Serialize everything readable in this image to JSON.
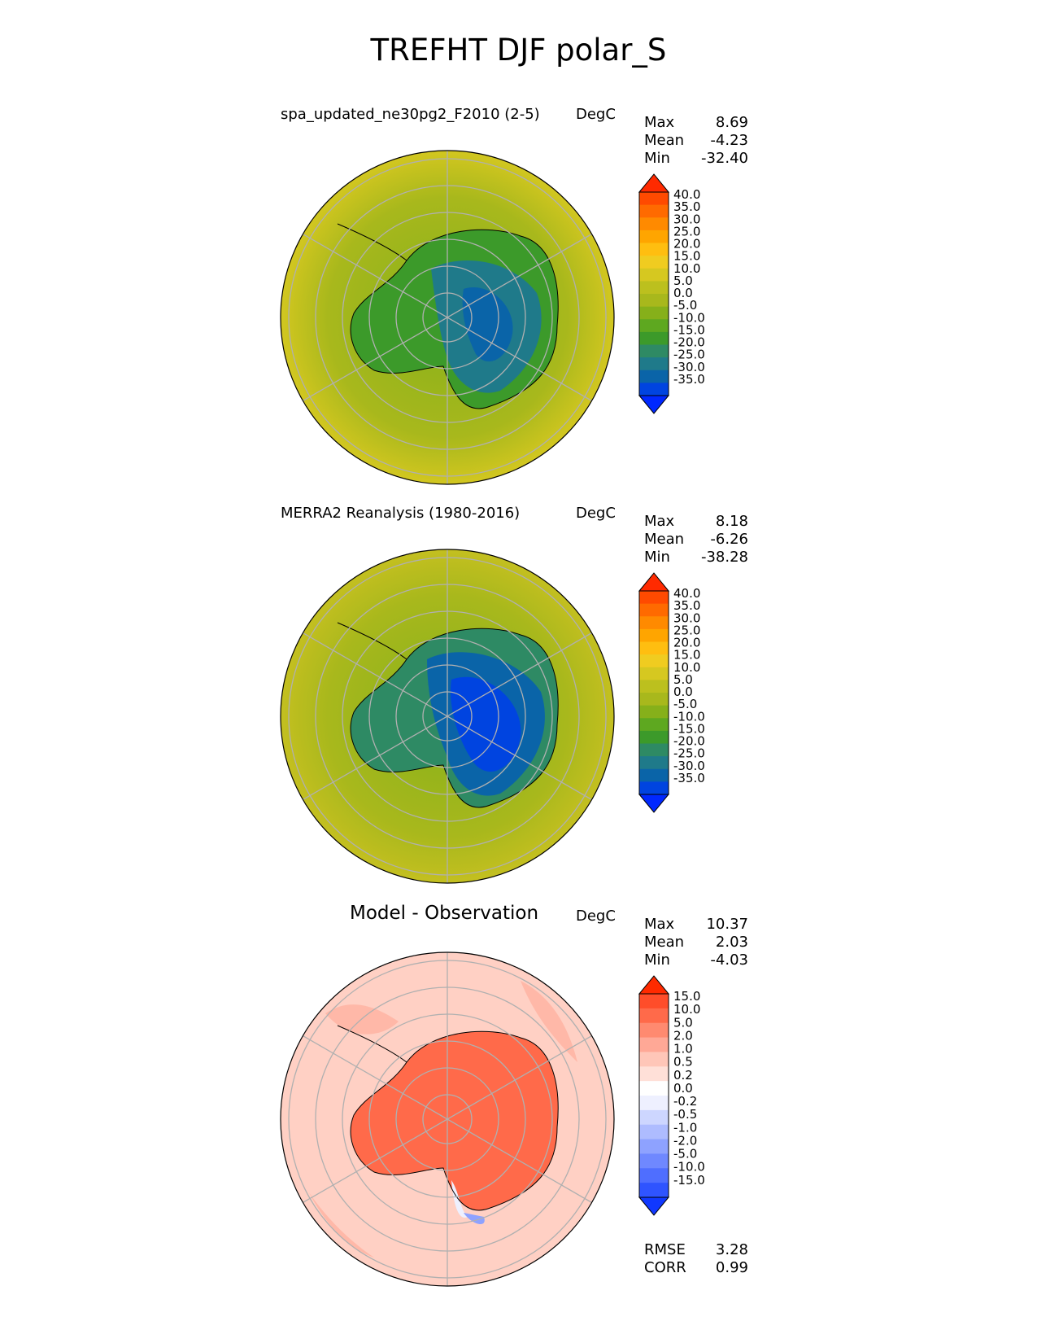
{
  "title": "TREFHT DJF polar_S",
  "panels": [
    {
      "title": "spa_updated_ne30pg2_F2010 (2-5)",
      "units": "DegC",
      "stats": [
        {
          "label": "Max",
          "value": "8.69"
        },
        {
          "label": "Mean",
          "value": "-4.23"
        },
        {
          "label": "Min",
          "value": "-32.40"
        }
      ],
      "colorbar_labels": [
        "40.0",
        "35.0",
        "30.0",
        "25.0",
        "20.0",
        "15.0",
        "10.0",
        "5.0",
        "0.0",
        "-5.0",
        "-10.0",
        "-15.0",
        "-20.0",
        "-25.0",
        "-30.0",
        "-35.0"
      ]
    },
    {
      "title": "MERRA2 Reanalysis (1980-2016)",
      "units": "DegC",
      "stats": [
        {
          "label": "Max",
          "value": "8.18"
        },
        {
          "label": "Mean",
          "value": "-6.26"
        },
        {
          "label": "Min",
          "value": "-38.28"
        }
      ],
      "colorbar_labels": [
        "40.0",
        "35.0",
        "30.0",
        "25.0",
        "20.0",
        "15.0",
        "10.0",
        "5.0",
        "0.0",
        "-5.0",
        "-10.0",
        "-15.0",
        "-20.0",
        "-25.0",
        "-30.0",
        "-35.0"
      ]
    },
    {
      "title": "Model - Observation",
      "units": "DegC",
      "stats": [
        {
          "label": "Max",
          "value": "10.37"
        },
        {
          "label": "Mean",
          "value": "2.03"
        },
        {
          "label": "Min",
          "value": "-4.03"
        }
      ],
      "colorbar_labels": [
        "15.0",
        "10.0",
        "5.0",
        "2.0",
        "1.0",
        "0.5",
        "0.2",
        "0.0",
        "-0.2",
        "-0.5",
        "-1.0",
        "-2.0",
        "-5.0",
        "-10.0",
        "-15.0"
      ],
      "extra_stats": [
        {
          "label": "RMSE",
          "value": "3.28"
        },
        {
          "label": "CORR",
          "value": "0.99"
        }
      ]
    }
  ],
  "colors": {
    "temp_scale": [
      "#ff2a00",
      "#ff4a00",
      "#ff6a00",
      "#ff8a00",
      "#ffa500",
      "#ffbe10",
      "#f0cc20",
      "#d6c820",
      "#bcc01e",
      "#a8b81c",
      "#86b01a",
      "#5ea820",
      "#3c9a2a",
      "#2e8a64",
      "#1f7a8a",
      "#0a64a8",
      "#0044e0",
      "#0028ff"
    ],
    "diff_scale": [
      "#ff2a00",
      "#ff4d2a",
      "#ff6a4a",
      "#ff8a70",
      "#ffa896",
      "#ffc6b8",
      "#ffe0d8",
      "#ffffff",
      "#eef0ff",
      "#cdd6ff",
      "#aebcff",
      "#8ea2ff",
      "#6f88ff",
      "#4f6eff",
      "#2f54ff",
      "#1038ff"
    ],
    "land_model": "#2e8a78",
    "land_obs": "#1a58d8",
    "ocean_model": "#a8b81c",
    "ocean_obs": "#9ab81c",
    "diff_land": "#ff6a4a",
    "diff_ocean": "#ffd0c4"
  }
}
